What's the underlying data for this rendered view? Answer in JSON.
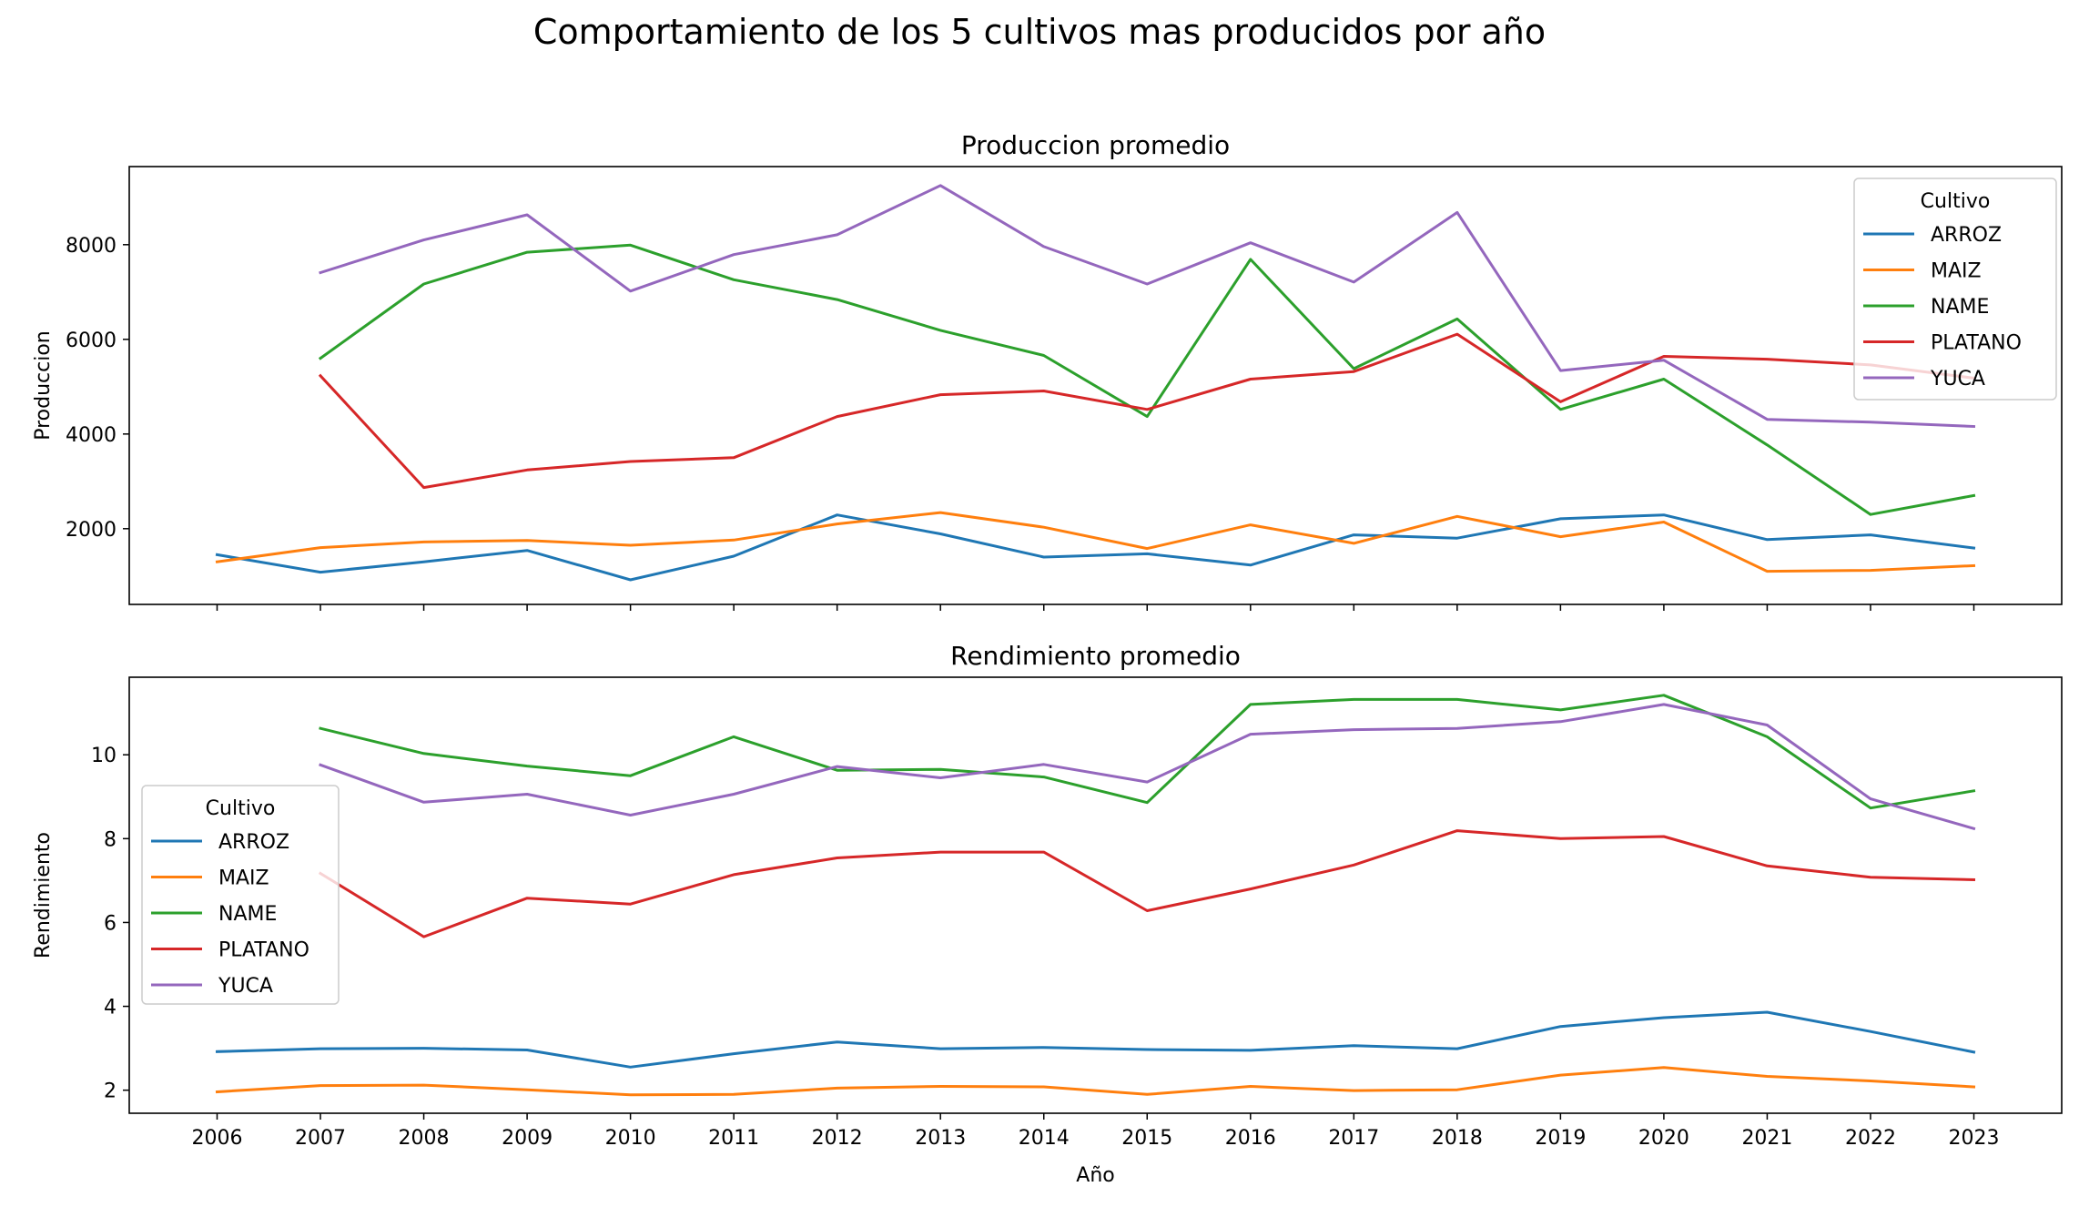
{
  "suptitle": "Comportamiento de los 5 cultivos mas producidos por año",
  "colors": {
    "ARROZ": "#1f77b4",
    "MAIZ": "#ff7f0e",
    "NAME": "#2ca02c",
    "PLATANO": "#d62728",
    "YUCA": "#9467bd"
  },
  "chart_data": [
    {
      "type": "line",
      "title": "Produccion promedio",
      "xlabel": "",
      "ylabel": "Produccion",
      "x": [
        2006,
        2007,
        2008,
        2009,
        2010,
        2011,
        2012,
        2013,
        2014,
        2015,
        2016,
        2017,
        2018,
        2019,
        2020,
        2021,
        2022,
        2023
      ],
      "ylim": [
        400,
        9650
      ],
      "yticks": [
        2000,
        4000,
        6000,
        8000
      ],
      "grid": false,
      "legend": {
        "title": "Cultivo",
        "position": "top-right"
      },
      "series": [
        {
          "name": "ARROZ",
          "values": [
            1450,
            1080,
            1300,
            1540,
            920,
            1420,
            2290,
            1890,
            1400,
            1470,
            1230,
            1870,
            1800,
            2210,
            2290,
            1770,
            1870,
            1590
          ]
        },
        {
          "name": "MAIZ",
          "values": [
            1300,
            1600,
            1720,
            1750,
            1650,
            1760,
            2100,
            2340,
            2030,
            1580,
            2080,
            1690,
            2260,
            1830,
            2140,
            1100,
            1120,
            1220
          ]
        },
        {
          "name": "NAME",
          "values": [
            null,
            5600,
            7170,
            7840,
            7990,
            7260,
            6840,
            6190,
            5660,
            4370,
            7690,
            5380,
            6430,
            4520,
            5160,
            3770,
            2300,
            2700
          ]
        },
        {
          "name": "PLATANO",
          "values": [
            null,
            5230,
            2870,
            3240,
            3420,
            3500,
            4370,
            4830,
            4910,
            4520,
            5160,
            5320,
            6110,
            4680,
            5640,
            5580,
            5460,
            5180
          ]
        },
        {
          "name": "YUCA",
          "values": [
            null,
            7410,
            8100,
            8630,
            7020,
            7790,
            8210,
            9250,
            7960,
            7170,
            8040,
            7210,
            8680,
            5340,
            5560,
            4310,
            4250,
            4160
          ]
        }
      ]
    },
    {
      "type": "line",
      "title": "Rendimiento promedio",
      "xlabel": "Año",
      "ylabel": "Rendimiento",
      "x": [
        2006,
        2007,
        2008,
        2009,
        2010,
        2011,
        2012,
        2013,
        2014,
        2015,
        2016,
        2017,
        2018,
        2019,
        2020,
        2021,
        2022,
        2023
      ],
      "ylim": [
        1.45,
        11.85
      ],
      "yticks": [
        2,
        4,
        6,
        8,
        10
      ],
      "grid": false,
      "legend": {
        "title": "Cultivo",
        "position": "center-left"
      },
      "series": [
        {
          "name": "ARROZ",
          "values": [
            2.92,
            2.99,
            3.0,
            2.96,
            2.55,
            2.87,
            3.15,
            2.99,
            3.02,
            2.97,
            2.95,
            3.06,
            2.99,
            3.52,
            3.73,
            3.86,
            3.4,
            2.91
          ]
        },
        {
          "name": "MAIZ",
          "values": [
            1.96,
            2.11,
            2.12,
            2.01,
            1.89,
            1.9,
            2.05,
            2.09,
            2.08,
            1.9,
            2.09,
            1.99,
            2.01,
            2.36,
            2.54,
            2.33,
            2.22,
            2.08
          ]
        },
        {
          "name": "NAME",
          "values": [
            null,
            10.63,
            10.03,
            9.73,
            9.5,
            10.43,
            9.63,
            9.65,
            9.47,
            8.86,
            11.2,
            11.32,
            11.32,
            11.07,
            11.42,
            10.43,
            8.73,
            9.14
          ]
        },
        {
          "name": "PLATANO",
          "values": [
            null,
            7.17,
            5.66,
            6.58,
            6.44,
            7.14,
            7.54,
            7.68,
            7.68,
            6.28,
            6.8,
            7.37,
            8.19,
            8.0,
            8.05,
            7.35,
            7.08,
            7.02
          ]
        },
        {
          "name": "YUCA",
          "values": [
            null,
            9.76,
            8.87,
            9.06,
            8.56,
            9.06,
            9.72,
            9.45,
            9.77,
            9.35,
            10.49,
            10.6,
            10.63,
            10.79,
            11.2,
            10.71,
            8.95,
            8.24
          ]
        }
      ]
    }
  ]
}
